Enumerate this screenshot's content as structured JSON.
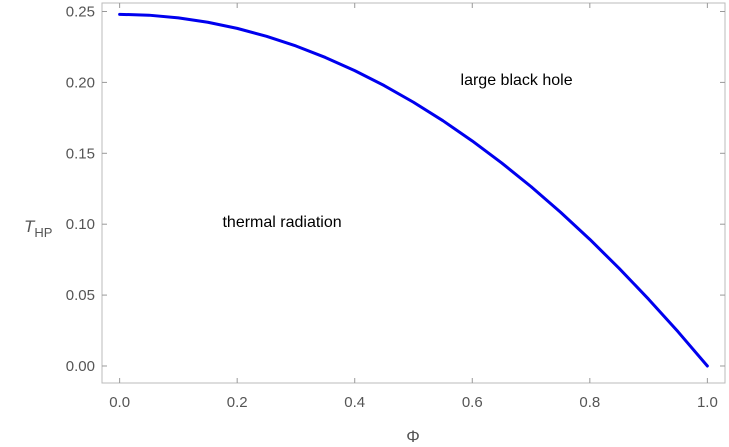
{
  "chart_data": {
    "type": "line",
    "title": "",
    "xlabel": "Φ",
    "ylabel": {
      "main": "T",
      "sub": "HP"
    },
    "xlim": [
      -0.03,
      1.03
    ],
    "ylim": [
      -0.012,
      0.256
    ],
    "x_ticks": [
      0.0,
      0.2,
      0.4,
      0.6,
      0.8,
      1.0
    ],
    "x_tick_labels": [
      "0.0",
      "0.2",
      "0.4",
      "0.6",
      "0.8",
      "1.0"
    ],
    "y_ticks": [
      0.0,
      0.05,
      0.1,
      0.15,
      0.2,
      0.25
    ],
    "y_tick_labels": [
      "0.00",
      "0.05",
      "0.10",
      "0.15",
      "0.20",
      "0.25"
    ],
    "grid": false,
    "series": [
      {
        "color": "#0000ee",
        "x": [
          0.0,
          0.05,
          0.1,
          0.15,
          0.2,
          0.25,
          0.3,
          0.35,
          0.4,
          0.45,
          0.5,
          0.55,
          0.6,
          0.65,
          0.7,
          0.75,
          0.8,
          0.85,
          0.9,
          0.95,
          1.0
        ],
        "y": [
          0.248,
          0.2474,
          0.2455,
          0.2424,
          0.2381,
          0.2325,
          0.2257,
          0.2176,
          0.2083,
          0.1978,
          0.186,
          0.173,
          0.1587,
          0.1432,
          0.1265,
          0.1085,
          0.0893,
          0.0688,
          0.0471,
          0.0242,
          0.0
        ]
      }
    ],
    "annotations": [
      {
        "text": "large black hole",
        "x": 0.58,
        "y": 0.198
      },
      {
        "text": "thermal radiation",
        "x": 0.175,
        "y": 0.098
      }
    ]
  }
}
